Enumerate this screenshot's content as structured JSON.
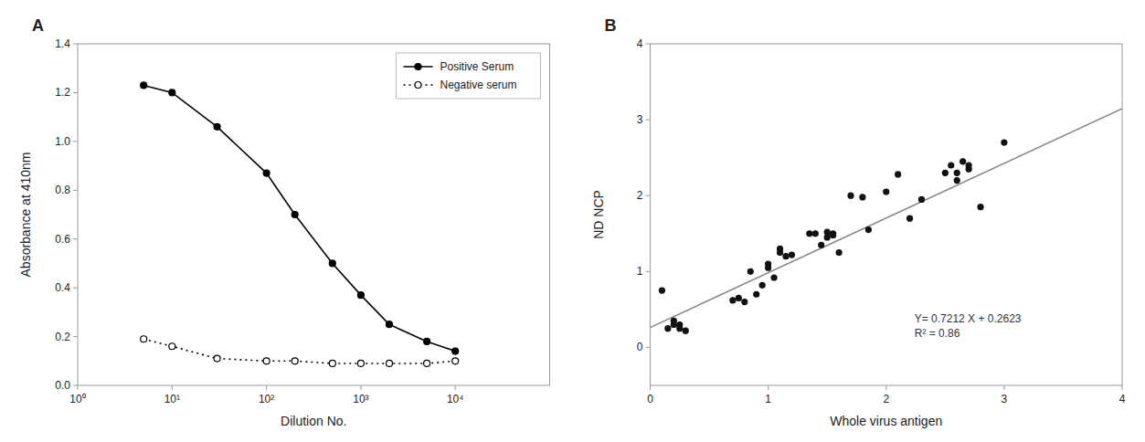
{
  "chart_data": [
    {
      "type": "line",
      "title": "A",
      "xlabel": "Dilution No.",
      "ylabel": "Absorbance at 410nm",
      "log": "x",
      "x": [
        5,
        10,
        30,
        100,
        200,
        500,
        1000,
        2000,
        5000,
        10000
      ],
      "series": [
        {
          "name": "Positive Serum",
          "color": "#000000",
          "marker": "circle",
          "line_style": "solid",
          "values": [
            1.23,
            1.2,
            1.06,
            0.87,
            0.7,
            0.5,
            0.37,
            0.25,
            0.18,
            0.14
          ]
        },
        {
          "name": "Negative serum",
          "color": "#000000",
          "marker": "hollow-circle",
          "line_style": "dotted",
          "values": [
            0.19,
            0.16,
            0.11,
            0.1,
            0.1,
            0.09,
            0.09,
            0.09,
            0.09,
            0.1
          ]
        }
      ],
      "xlim": [
        1,
        100000
      ],
      "xticks": [
        {
          "value": 1,
          "label": "10⁰"
        },
        {
          "value": 10,
          "label": "10¹"
        },
        {
          "value": 100,
          "label": "10²"
        },
        {
          "value": 1000,
          "label": "10³"
        },
        {
          "value": 10000,
          "label": "10⁴"
        }
      ],
      "ylim": [
        0.0,
        1.4
      ],
      "yticks": [
        {
          "value": 0,
          "label": "0.0"
        },
        0.2,
        0.4,
        0.6,
        0.8,
        {
          "value": 1,
          "label": "1.0"
        },
        1.2,
        1.4
      ],
      "grid": false,
      "legend": "upper right"
    },
    {
      "type": "scatter",
      "title": "B",
      "xlabel": "Whole virus antigen",
      "ylabel": "ND NCP",
      "series": [
        {
          "type": "scatter",
          "color": "#111111",
          "marker": "circle",
          "x": [
            0.1,
            0.15,
            0.2,
            0.2,
            0.25,
            0.25,
            0.3,
            0.7,
            0.75,
            0.8,
            0.85,
            0.9,
            0.95,
            1.0,
            1.0,
            1.05,
            1.1,
            1.1,
            1.15,
            1.2,
            1.35,
            1.4,
            1.45,
            1.5,
            1.5,
            1.55,
            1.55,
            1.6,
            1.7,
            1.8,
            1.85,
            2.0,
            2.1,
            2.2,
            2.3,
            2.5,
            2.55,
            2.6,
            2.6,
            2.65,
            2.7,
            2.7,
            2.8,
            3.0
          ],
          "values": [
            0.75,
            0.25,
            0.3,
            0.35,
            0.25,
            0.3,
            0.22,
            0.62,
            0.65,
            0.6,
            1.0,
            0.7,
            0.82,
            1.05,
            1.1,
            0.92,
            1.3,
            1.25,
            1.2,
            1.22,
            1.5,
            1.5,
            1.35,
            1.45,
            1.52,
            1.48,
            1.5,
            1.25,
            2.0,
            1.98,
            1.55,
            2.05,
            2.28,
            1.7,
            1.95,
            2.3,
            2.4,
            2.3,
            2.2,
            2.45,
            2.4,
            2.35,
            1.85,
            2.7
          ]
        },
        {
          "type": "line",
          "color": "#888888",
          "line_style": "solid",
          "x": [
            0,
            4
          ],
          "values": [
            0.2623,
            3.1471
          ]
        }
      ],
      "xlim": [
        0,
        4
      ],
      "xticks": [
        0,
        1,
        2,
        3,
        4
      ],
      "ylim": [
        -0.5,
        4
      ],
      "yticks": [
        0,
        1,
        2,
        3,
        4
      ],
      "grid": false,
      "annotations": [
        "Y= 0.7212 X + 0.2623",
        "R² = 0.86"
      ]
    }
  ]
}
